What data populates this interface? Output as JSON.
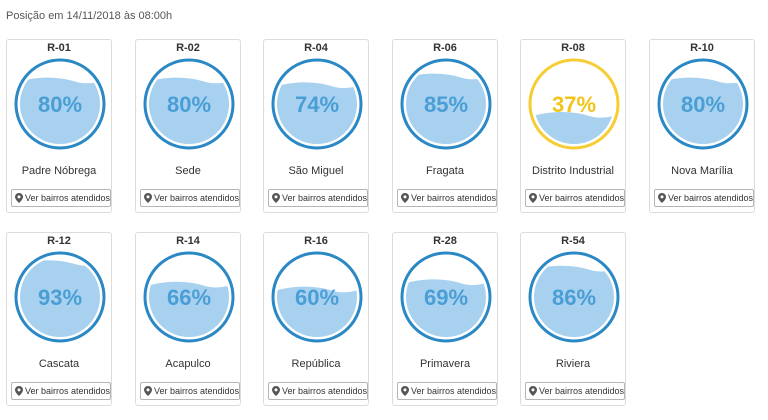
{
  "header": {
    "text": "Posição em 14/11/2018 às 08:00h"
  },
  "button_label": "Ver bairros atendidos",
  "colors": {
    "normal": "#2a88c4",
    "warning": "#f6cd33",
    "water": "#a8d1ef",
    "text_normal": "#4a9ed6",
    "text_warning": "#f0c419"
  },
  "reservoirs": [
    {
      "code": "R-01",
      "level": 80,
      "percent_text": "80%",
      "name": "Padre Nóbrega",
      "status": "normal"
    },
    {
      "code": "R-02",
      "level": 80,
      "percent_text": "80%",
      "name": "Sede",
      "status": "normal"
    },
    {
      "code": "R-04",
      "level": 74,
      "percent_text": "74%",
      "name": "São Miguel",
      "status": "normal"
    },
    {
      "code": "R-06",
      "level": 85,
      "percent_text": "85%",
      "name": "Fragata",
      "status": "normal"
    },
    {
      "code": "R-08",
      "level": 37,
      "percent_text": "37%",
      "name": "Distrito Industrial",
      "status": "warning"
    },
    {
      "code": "R-10",
      "level": 80,
      "percent_text": "80%",
      "name": "Nova Marília",
      "status": "normal"
    },
    {
      "code": "R-12",
      "level": 93,
      "percent_text": "93%",
      "name": "Cascata",
      "status": "normal"
    },
    {
      "code": "R-14",
      "level": 66,
      "percent_text": "66%",
      "name": "Acapulco",
      "status": "normal"
    },
    {
      "code": "R-16",
      "level": 60,
      "percent_text": "60%",
      "name": "República",
      "status": "normal"
    },
    {
      "code": "R-28",
      "level": 69,
      "percent_text": "69%",
      "name": "Primavera",
      "status": "normal"
    },
    {
      "code": "R-54",
      "level": 86,
      "percent_text": "86%",
      "name": "Riviera",
      "status": "normal"
    }
  ]
}
